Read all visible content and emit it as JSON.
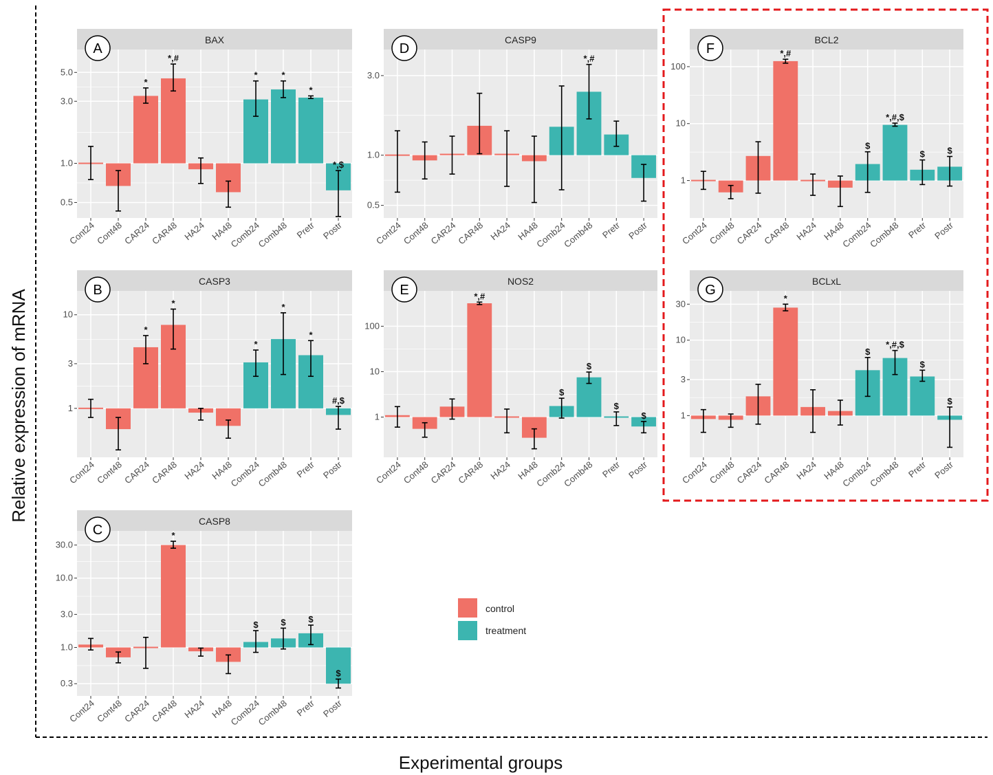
{
  "figure": {
    "ylabel": "Relative expression of mRNA",
    "xlabel": "Experimental groups",
    "highlight": "red dashed box around panels F and G"
  },
  "legend": {
    "entries": [
      {
        "label": "control",
        "color": "#F07167"
      },
      {
        "label": "treatment",
        "color": "#3CB5B0"
      }
    ],
    "position": "bottom-center"
  },
  "colors": {
    "control": "#F07167",
    "treatment": "#3CB5B0",
    "panel_bg": "#EBEBEB",
    "strip_bg": "#D9D9D9",
    "highlight": "#E31A1C"
  },
  "chart_data": [
    {
      "letter": "A",
      "title": "BAX",
      "type": "bar",
      "scale": "log",
      "categories": [
        "Cont24",
        "Cont48",
        "CAR24",
        "CAR48",
        "HA24",
        "HA48",
        "Comb24",
        "Comb48",
        "Pretr",
        "Postr"
      ],
      "groups": [
        "control",
        "control",
        "control",
        "control",
        "control",
        "control",
        "treatment",
        "treatment",
        "treatment",
        "treatment"
      ],
      "values": [
        1.0,
        0.67,
        3.3,
        4.5,
        0.9,
        0.6,
        3.1,
        3.7,
        3.2,
        0.62
      ],
      "err_low": [
        0.75,
        0.43,
        2.9,
        3.6,
        0.7,
        0.46,
        2.3,
        3.2,
        3.15,
        0.39
      ],
      "err_high": [
        1.35,
        0.88,
        3.8,
        5.8,
        1.1,
        0.73,
        4.3,
        4.3,
        3.3,
        0.88
      ],
      "annotations": [
        "",
        "",
        "*",
        "*,#",
        "",
        "",
        "*",
        "*",
        "*",
        "*,$"
      ],
      "yticks": [
        0.5,
        1.0,
        3.0,
        5.0
      ],
      "ytick_labels": [
        "0.5",
        "1.0",
        "3.0",
        "5.0"
      ],
      "ylim": [
        0.38,
        7.5
      ]
    },
    {
      "letter": "B",
      "title": "CASP3",
      "type": "bar",
      "scale": "log",
      "categories": [
        "Cont24",
        "Cont48",
        "CAR24",
        "CAR48",
        "HA24",
        "HA48",
        "Comb24",
        "Comb48",
        "Pretr",
        "Postr"
      ],
      "groups": [
        "control",
        "control",
        "control",
        "control",
        "control",
        "control",
        "treatment",
        "treatment",
        "treatment",
        "treatment"
      ],
      "values": [
        1.0,
        0.6,
        4.5,
        7.8,
        0.9,
        0.65,
        3.1,
        5.5,
        3.7,
        0.85
      ],
      "err_low": [
        0.8,
        0.36,
        3.0,
        4.3,
        0.75,
        0.48,
        2.2,
        2.3,
        2.2,
        0.6
      ],
      "err_high": [
        1.25,
        0.8,
        6.0,
        11.5,
        1.0,
        0.75,
        4.2,
        10.5,
        5.3,
        1.05
      ],
      "annotations": [
        "",
        "",
        "*",
        "*",
        "",
        "",
        "*",
        "*",
        "*",
        "#,$"
      ],
      "yticks": [
        1,
        3,
        10
      ],
      "ytick_labels": [
        "1",
        "3",
        "10"
      ],
      "ylim": [
        0.3,
        18
      ]
    },
    {
      "letter": "C",
      "title": "CASP8",
      "type": "bar",
      "scale": "log",
      "categories": [
        "Cont24",
        "Cont48",
        "CAR24",
        "CAR48",
        "HA24",
        "HA48",
        "Comb24",
        "Comb48",
        "Pretr",
        "Postr"
      ],
      "groups": [
        "control",
        "control",
        "control",
        "control",
        "control",
        "control",
        "treatment",
        "treatment",
        "treatment",
        "treatment"
      ],
      "values": [
        1.1,
        0.72,
        0.98,
        30.0,
        0.88,
        0.62,
        1.2,
        1.35,
        1.6,
        0.3
      ],
      "err_low": [
        0.92,
        0.6,
        0.5,
        27.0,
        0.75,
        0.42,
        0.85,
        0.95,
        1.1,
        0.26
      ],
      "err_high": [
        1.35,
        0.86,
        1.4,
        34.0,
        0.98,
        0.78,
        1.75,
        1.9,
        2.1,
        0.35
      ],
      "annotations": [
        "",
        "",
        "",
        "*",
        "",
        "",
        "$",
        "$",
        "$",
        "$"
      ],
      "yticks": [
        0.3,
        1.0,
        3.0,
        10.0,
        30.0
      ],
      "ytick_labels": [
        "0.3",
        "1.0",
        "3.0",
        "10.0",
        "30.0"
      ],
      "ylim": [
        0.2,
        48
      ]
    },
    {
      "letter": "D",
      "title": "CASP9",
      "type": "bar",
      "scale": "log",
      "categories": [
        "Cont24",
        "Cont48",
        "CAR24",
        "CAR48",
        "HA24",
        "HA48",
        "Comb24",
        "Comb48",
        "Pretr",
        "Postr"
      ],
      "groups": [
        "control",
        "control",
        "control",
        "control",
        "control",
        "control",
        "treatment",
        "treatment",
        "treatment",
        "treatment"
      ],
      "values": [
        1.0,
        0.93,
        1.02,
        1.5,
        1.02,
        0.92,
        1.48,
        2.4,
        1.33,
        0.73
      ],
      "err_low": [
        0.6,
        0.72,
        0.77,
        1.02,
        0.65,
        0.52,
        0.62,
        1.65,
        1.13,
        0.53
      ],
      "err_high": [
        1.4,
        1.2,
        1.3,
        2.35,
        1.4,
        1.3,
        2.6,
        3.5,
        1.6,
        0.88
      ],
      "annotations": [
        "",
        "",
        "",
        "",
        "",
        "",
        "",
        "*,#",
        "",
        ""
      ],
      "yticks": [
        0.5,
        1.0,
        3.0
      ],
      "ytick_labels": [
        "0.5",
        "1.0",
        "3.0"
      ],
      "ylim": [
        0.42,
        4.3
      ]
    },
    {
      "letter": "E",
      "title": "NOS2",
      "type": "bar",
      "scale": "log",
      "categories": [
        "Cont24",
        "Cont48",
        "CAR24",
        "CAR48",
        "HA24",
        "HA48",
        "Comb24",
        "Comb48",
        "Pretr",
        "Postr"
      ],
      "groups": [
        "control",
        "control",
        "control",
        "control",
        "control",
        "control",
        "treatment",
        "treatment",
        "treatment",
        "treatment"
      ],
      "values": [
        1.1,
        0.55,
        1.7,
        320.0,
        1.0,
        0.35,
        1.75,
        7.5,
        1.05,
        0.62
      ],
      "err_low": [
        0.6,
        0.36,
        0.9,
        300.0,
        0.45,
        0.2,
        0.95,
        5.5,
        0.65,
        0.45
      ],
      "err_high": [
        1.7,
        0.75,
        2.5,
        340.0,
        1.5,
        0.55,
        2.6,
        9.8,
        1.3,
        0.8
      ],
      "annotations": [
        "",
        "",
        "",
        "*,#",
        "",
        "",
        "$",
        "$",
        "$",
        "$"
      ],
      "yticks": [
        1,
        10,
        100
      ],
      "ytick_labels": [
        "1",
        "10",
        "100"
      ],
      "ylim": [
        0.13,
        600
      ]
    },
    {
      "letter": "F",
      "title": "BCL2",
      "type": "bar",
      "scale": "log",
      "categories": [
        "Cont24",
        "Cont48",
        "CAR24",
        "CAR48",
        "HA24",
        "HA48",
        "Comb24",
        "Comb48",
        "Pretr",
        "Postr"
      ],
      "groups": [
        "control",
        "control",
        "control",
        "control",
        "control",
        "control",
        "treatment",
        "treatment",
        "treatment",
        "treatment"
      ],
      "values": [
        1.05,
        0.62,
        2.7,
        125.0,
        0.95,
        0.75,
        1.95,
        9.5,
        1.55,
        1.75
      ],
      "err_low": [
        0.7,
        0.48,
        0.6,
        115.0,
        0.55,
        0.35,
        0.62,
        9.0,
        0.85,
        0.8
      ],
      "err_high": [
        1.45,
        0.82,
        4.8,
        135.0,
        1.3,
        1.2,
        3.2,
        10.2,
        2.3,
        2.65
      ],
      "annotations": [
        "",
        "",
        "",
        "*,#",
        "",
        "",
        "$",
        "*,#,$",
        "$",
        "$"
      ],
      "yticks": [
        1,
        10,
        100
      ],
      "ytick_labels": [
        "1",
        "10",
        "100"
      ],
      "ylim": [
        0.22,
        200
      ]
    },
    {
      "letter": "G",
      "title": "BCLxL",
      "type": "bar",
      "scale": "log",
      "categories": [
        "Cont24",
        "Cont48",
        "CAR24",
        "CAR48",
        "HA24",
        "HA48",
        "Comb24",
        "Comb48",
        "Pretr",
        "Postr"
      ],
      "groups": [
        "control",
        "control",
        "control",
        "control",
        "control",
        "control",
        "treatment",
        "treatment",
        "treatment",
        "treatment"
      ],
      "values": [
        0.9,
        0.88,
        1.8,
        27.0,
        1.3,
        1.15,
        4.0,
        5.8,
        3.3,
        0.88
      ],
      "err_low": [
        0.6,
        0.7,
        0.77,
        24.5,
        0.6,
        0.75,
        1.8,
        3.5,
        2.85,
        0.38
      ],
      "err_high": [
        1.2,
        1.05,
        2.6,
        30.0,
        2.2,
        1.6,
        5.9,
        7.3,
        4.0,
        1.3
      ],
      "annotations": [
        "",
        "",
        "",
        "*",
        "",
        "",
        "$",
        "*,#,$",
        "$",
        "$"
      ],
      "yticks": [
        1,
        3,
        10,
        30
      ],
      "ytick_labels": [
        "1",
        "3",
        "10",
        "30"
      ],
      "ylim": [
        0.28,
        45
      ]
    }
  ]
}
